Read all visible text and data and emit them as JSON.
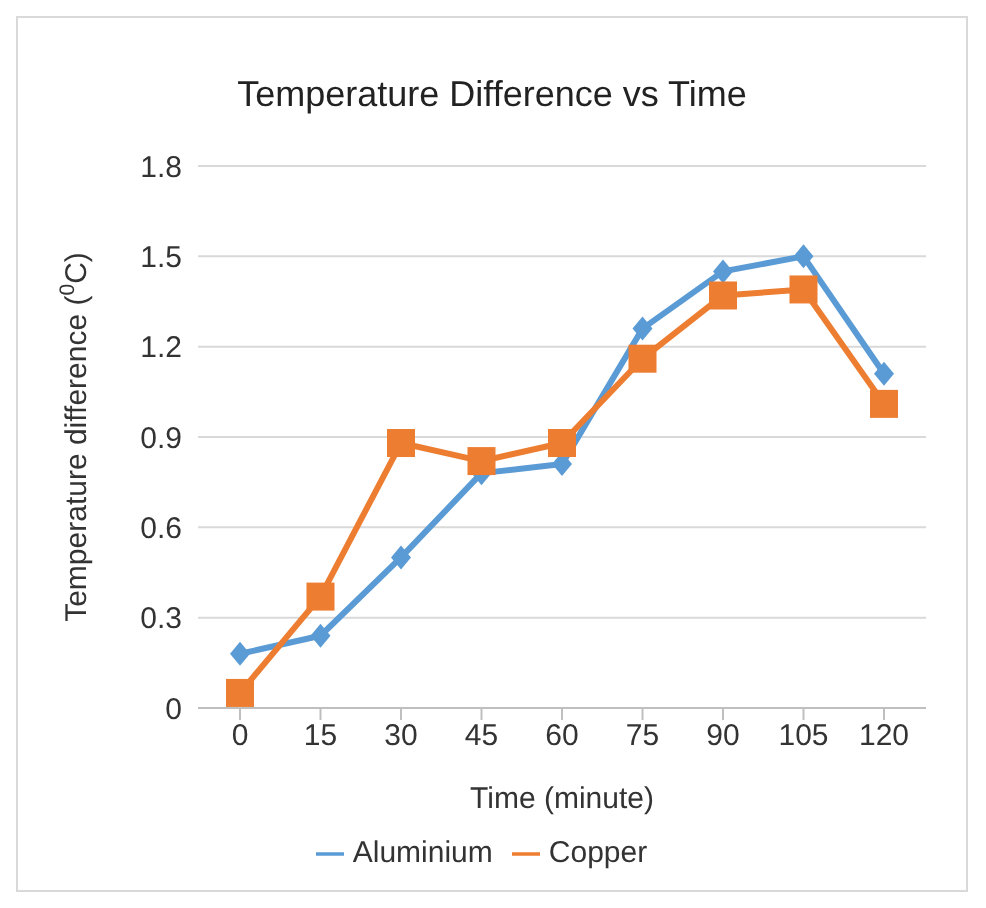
{
  "chart_data": {
    "type": "line",
    "title": "Temperature Difference vs Time",
    "xlabel": "Time (minute)",
    "ylabel": "Temperature difference ($^{0}$C)",
    "categories": [
      "0",
      "15",
      "30",
      "45",
      "60",
      "75",
      "90",
      "105",
      "120"
    ],
    "series": [
      {
        "name": "Aluminium",
        "color": "#5b9bd5",
        "marker": "diamond",
        "values": [
          0.18,
          0.24,
          0.5,
          0.78,
          0.81,
          1.26,
          1.45,
          1.5,
          1.11
        ]
      },
      {
        "name": "Copper",
        "color": "#ed7d31",
        "marker": "square",
        "values": [
          0.05,
          0.37,
          0.88,
          0.82,
          0.88,
          1.16,
          1.37,
          1.39,
          1.01
        ]
      }
    ],
    "ylim": [
      0,
      1.8
    ],
    "yticks": [
      0,
      0.3,
      0.6,
      0.9,
      1.2,
      1.5,
      1.8
    ],
    "grid": "y",
    "legend": "bottom"
  }
}
